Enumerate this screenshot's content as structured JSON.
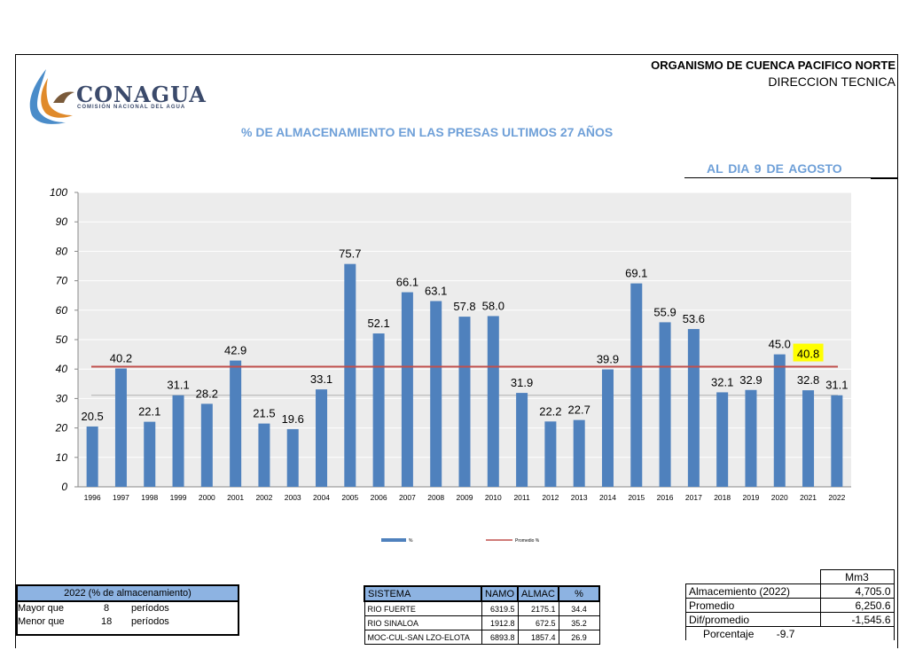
{
  "header": {
    "logo_text": "CONAGUA",
    "logo_sub": "COMISIÓN NACIONAL DEL AGUA",
    "org_line1": "ORGANISMO DE CUENCA PACIFICO NORTE",
    "org_line2": "DIRECCION TECNICA",
    "title": "% DE ALMACENAMIENTO EN LAS PRESAS ULTIMOS 27 AÑOS",
    "date": "AL DIA   9   DE AGOSTO"
  },
  "chart_data": {
    "type": "bar",
    "categories": [
      "1996",
      "1997",
      "1998",
      "1999",
      "2000",
      "2001",
      "2002",
      "2003",
      "2004",
      "2005",
      "2006",
      "2007",
      "2008",
      "2009",
      "2010",
      "2011",
      "2012",
      "2013",
      "2014",
      "2015",
      "2016",
      "2017",
      "2018",
      "2019",
      "2020",
      "2021",
      "2022"
    ],
    "series": [
      {
        "name": "%",
        "values": [
          20.5,
          40.2,
          22.1,
          31.1,
          28.2,
          42.9,
          21.5,
          19.6,
          33.1,
          75.7,
          52.1,
          66.1,
          63.1,
          57.8,
          58.0,
          31.9,
          22.2,
          22.7,
          39.9,
          69.1,
          55.9,
          53.6,
          32.1,
          32.9,
          45.0,
          32.8,
          31.1
        ]
      },
      {
        "name": "Promedio %",
        "type": "line",
        "value": 40.8
      }
    ],
    "ylim": [
      0,
      100
    ],
    "yticks": [
      0,
      10,
      20,
      30,
      40,
      50,
      60,
      70,
      80,
      90,
      100
    ],
    "average_label": "40.8",
    "secondary_gridline": 31.1,
    "colors": {
      "bar": "#4f81bd",
      "average": "#c0504d",
      "highlight": "#ffff00"
    },
    "grid": true,
    "legend": "bottom-center"
  },
  "summary": {
    "heading": "2022 (% de almacenamiento)",
    "rows": [
      {
        "label": "Mayor que",
        "count": "8",
        "unit": "períodos"
      },
      {
        "label": "Menor que",
        "count": "18",
        "unit": "períodos"
      }
    ]
  },
  "systems": {
    "headers": [
      "SISTEMA",
      "NAMO",
      "ALMAC",
      "%"
    ],
    "rows": [
      [
        "RIO FUERTE",
        "6319.5",
        "2175.1",
        "34.4"
      ],
      [
        "RIO SINALOA",
        "1912.8",
        "672.5",
        "35.2"
      ],
      [
        "MOC-CUL-SAN LZO-ELOTA",
        "6893.8",
        "1857.4",
        "26.9"
      ]
    ]
  },
  "stats": {
    "unit": "Mm3",
    "rows": [
      [
        "Almacemiento (2022)",
        "4,705.0"
      ],
      [
        "Promedio",
        "6,250.6"
      ],
      [
        "Dif/promedio",
        "-1,545.6"
      ]
    ],
    "pct_label": "Porcentaje",
    "pct_value": "-9.7"
  }
}
